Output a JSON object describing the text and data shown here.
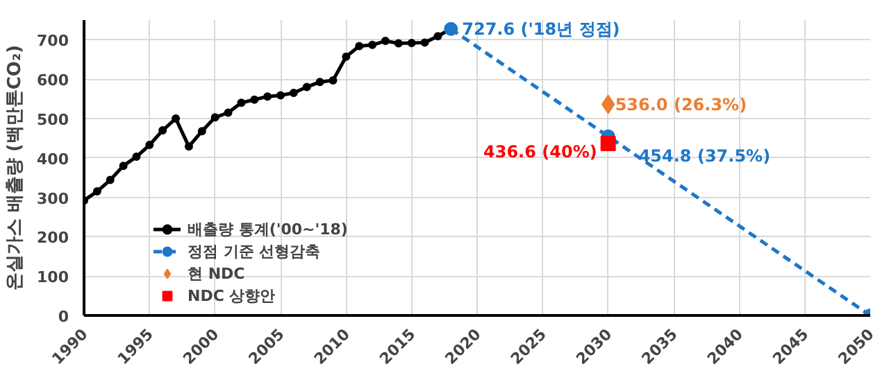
{
  "chart_data": {
    "type": "line",
    "ylabel": "온실가스 배출량 (백만톤CO₂)",
    "xlim": [
      1990,
      2050
    ],
    "ylim": [
      0,
      750
    ],
    "xticks": [
      1990,
      1995,
      2000,
      2005,
      2010,
      2015,
      2020,
      2025,
      2030,
      2035,
      2040,
      2045,
      2050
    ],
    "yticks": [
      0,
      100,
      200,
      300,
      400,
      500,
      600,
      700
    ],
    "grid": true,
    "legend": "bottom left",
    "series": [
      {
        "name": "배출량 통계('00~'18)",
        "color": "#000000",
        "marker": "circle",
        "line_style": "solid",
        "x": [
          1990,
          1991,
          1992,
          1993,
          1994,
          1995,
          1996,
          1997,
          1998,
          1999,
          2000,
          2001,
          2002,
          2003,
          2004,
          2005,
          2006,
          2007,
          2008,
          2009,
          2010,
          2011,
          2012,
          2013,
          2014,
          2015,
          2016,
          2017,
          2018
        ],
        "values": [
          292,
          315,
          344,
          380,
          403,
          433,
          470,
          500,
          429,
          468,
          503,
          515,
          540,
          548,
          556,
          559,
          565,
          580,
          593,
          597,
          657,
          684,
          687,
          697,
          691,
          692,
          693,
          709,
          728
        ]
      },
      {
        "name": "정점 기준 선형감축",
        "color": "#1f77c8",
        "marker": "circle",
        "line_style": "dashed",
        "x": [
          2018,
          2030,
          2050
        ],
        "values": [
          727.6,
          454.8,
          0
        ],
        "value_labels": [
          "727.6 ('18년 정점)",
          "454.8 (37.5%)",
          null
        ]
      },
      {
        "name": "현 NDC",
        "type": "scatter",
        "color": "#ed7d31",
        "marker": "diamond",
        "x": [
          2030
        ],
        "values": [
          536.0
        ],
        "value_labels": [
          "536.0 (26.3%)"
        ]
      },
      {
        "name": "NDC 상향안",
        "type": "scatter",
        "color": "#ff0000",
        "marker": "square",
        "x": [
          2030
        ],
        "values": [
          436.6
        ],
        "value_labels": [
          "436.6 (40%)"
        ]
      }
    ]
  }
}
